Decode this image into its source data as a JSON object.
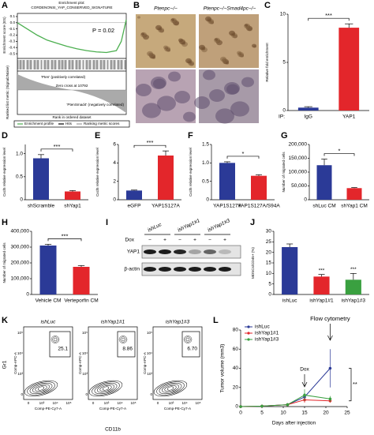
{
  "panels": {
    "B": {
      "label": "B",
      "columns": [
        "Ptenpc−/−",
        "Ptenpc−/−Smad4pc−/−"
      ]
    },
    "I": {
      "label": "I",
      "groups": [
        "ishLuc",
        "ishYap1#1",
        "ishYap1#3"
      ],
      "dox_label": "Dox",
      "dox": [
        "−",
        "+",
        "−",
        "+",
        "−",
        "+"
      ],
      "rows": [
        "YAP1",
        "β-actin"
      ]
    },
    "K": {
      "label": "K",
      "plots": [
        {
          "title": "ishLuc",
          "gate": "25.1"
        },
        {
          "title": "ishYap1#1",
          "gate": "8.86"
        },
        {
          "title": "ishYap1#3",
          "gate": "6.70"
        }
      ],
      "y_label": "Gr1",
      "x_label": "CD11b",
      "plot_y_axis": "Comp-APC-A",
      "plot_x_axis": "Comp-PE-Cy7-A",
      "axis_ticks": [
        "0",
        "10³",
        "10⁴",
        "10⁵"
      ]
    }
  },
  "chart_data": [
    {
      "type": "gsea",
      "panel_label": "A",
      "title": "Enrichment plot:",
      "subtitle": "CORDENONSI_YAP_CONSERVED_SIGNATURE",
      "y_label": "Enrichment score (ES)",
      "annotation": "P = 0.02",
      "x": [
        0,
        2000,
        4000,
        6000,
        8000,
        10000,
        12000,
        14000,
        16000,
        18000,
        20000,
        21000,
        22000
      ],
      "series": [
        {
          "name": "Enrichment profile",
          "color": "#4caf50",
          "values": [
            0,
            -0.1,
            -0.2,
            -0.28,
            -0.33,
            -0.38,
            -0.42,
            -0.45,
            -0.47,
            -0.48,
            -0.45,
            -0.3,
            0.05
          ]
        }
      ],
      "legend_extra": [
        {
          "name": "Hits",
          "color": "#000000"
        },
        {
          "name": "Ranking metric scores",
          "color": "#999999"
        }
      ],
      "xlim": [
        0,
        22000
      ],
      "ylim": [
        -0.55,
        0.15
      ],
      "yticks": [
        0.1,
        {
          "value": 0,
          "label": "0.0"
        },
        -0.1,
        -0.2,
        -0.3,
        -0.4,
        -0.5
      ],
      "positive_label": "'Pten' (positively correlated)",
      "zero_cross": "Zero cross at 10792",
      "negative_label": "'PtenSmad4' (negatively correlated)",
      "metric_label": "Ranked list metric (Signal2Noise)",
      "x_label": "Rank in ordered dataset"
    },
    {
      "type": "bar",
      "panel_label": "C",
      "y_label": "Relative fold enrichment",
      "categories": [
        "IgG",
        "YAP1"
      ],
      "category_prefix": "IP:",
      "values": [
        0.3,
        8.6
      ],
      "errors": [
        0.1,
        0.4
      ],
      "colors": [
        "#2b3a97",
        "#e3262b"
      ],
      "ylim": [
        0,
        10
      ],
      "yticks": [
        0,
        5,
        10
      ],
      "annotations": [
        "***"
      ]
    },
    {
      "type": "bar",
      "panel_label": "D",
      "y_label": "Cxcl5 relative expression level",
      "categories": [
        "shScramble",
        "shYap1"
      ],
      "values": [
        0.9,
        0.18
      ],
      "errors": [
        0.08,
        0.02
      ],
      "colors": [
        "#2b3a97",
        "#e3262b"
      ],
      "ylim": [
        0,
        1.2
      ],
      "yticks": [
        0,
        0.5,
        {
          "value": 1,
          "label": "1.0"
        }
      ],
      "annotations": [
        "***"
      ]
    },
    {
      "type": "bar",
      "panel_label": "E",
      "y_label": "Cxcl5 relative expression level",
      "categories": [
        "eGFP",
        "YAP1S127A"
      ],
      "values": [
        1.0,
        4.8
      ],
      "errors": [
        0.05,
        0.5
      ],
      "colors": [
        "#2b3a97",
        "#e3262b"
      ],
      "ylim": [
        0,
        6
      ],
      "yticks": [
        0,
        2,
        4,
        6
      ],
      "annotations": [
        "***"
      ]
    },
    {
      "type": "bar",
      "panel_label": "F",
      "y_label": "Cxcl5 relative expression level",
      "categories": [
        "YAP1S127A",
        "YAP1S127A/S94A"
      ],
      "values": [
        1.0,
        0.65
      ],
      "errors": [
        0.03,
        0.03
      ],
      "colors": [
        "#2b3a97",
        "#e3262b"
      ],
      "ylim": [
        0,
        1.5
      ],
      "yticks": [
        0,
        0.5,
        {
          "value": 1,
          "label": "1.0"
        },
        1.5
      ],
      "annotations": [
        "*"
      ]
    },
    {
      "type": "bar",
      "panel_label": "G",
      "y_label": "Number of migrated cells",
      "categories": [
        "shLuc CM",
        "shYap1 CM"
      ],
      "values": [
        125000,
        42000
      ],
      "errors": [
        22000,
        2000
      ],
      "colors": [
        "#2b3a97",
        "#e3262b"
      ],
      "ylim": [
        0,
        200000
      ],
      "yticks": [
        0,
        {
          "value": 50000,
          "label": "50,000"
        },
        {
          "value": 100000,
          "label": "100,000"
        },
        {
          "value": 150000,
          "label": "150,000"
        },
        {
          "value": 200000,
          "label": "200,000"
        }
      ],
      "annotations": [
        "*"
      ]
    },
    {
      "type": "bar",
      "panel_label": "H",
      "y_label": "Number of migrated cells",
      "categories": [
        "Vehicle CM",
        "Verteporfin CM"
      ],
      "values": [
        310000,
        175000
      ],
      "errors": [
        8000,
        8000
      ],
      "colors": [
        "#2b3a97",
        "#e3262b"
      ],
      "ylim": [
        0,
        400000
      ],
      "yticks": [
        0,
        {
          "value": 100000,
          "label": "100,000"
        },
        {
          "value": 200000,
          "label": "200,000"
        },
        {
          "value": 300000,
          "label": "300,000"
        },
        {
          "value": 400000,
          "label": "400,000"
        }
      ],
      "annotations": [
        "***"
      ]
    },
    {
      "type": "bar",
      "panel_label": "J",
      "y_label": "MDSCs/CD45+ (%)",
      "categories": [
        "ishLuc",
        "ishYap1#1",
        "ishYap1#3"
      ],
      "values": [
        22.5,
        8.5,
        7
      ],
      "errors": [
        1.5,
        1,
        3
      ],
      "colors": [
        "#2b3a97",
        "#e3262b",
        "#3aa040"
      ],
      "ylim": [
        0,
        30
      ],
      "yticks": [
        0,
        5,
        10,
        15,
        20,
        25,
        30
      ],
      "annotations": [
        "***",
        "***"
      ]
    },
    {
      "type": "line",
      "panel_label": "L",
      "y_label": "Tumor volume (mm3)",
      "x_label": "Days after injection",
      "x": [
        0,
        5,
        11,
        15,
        21
      ],
      "xlim": [
        0,
        25
      ],
      "xticks": [
        0,
        5,
        10,
        15,
        20,
        25
      ],
      "ylim": [
        0,
        80
      ],
      "yticks": [
        0,
        20,
        40,
        60,
        80
      ],
      "series": [
        {
          "name": "ishLuc",
          "color": "#2b3a97",
          "values": [
            0,
            0.5,
            2,
            10,
            40
          ],
          "errors": [
            0,
            0.3,
            1,
            4,
            20
          ]
        },
        {
          "name": "ishYap1#1",
          "color": "#e3262b",
          "values": [
            0,
            0.5,
            2,
            7,
            6
          ],
          "errors": [
            0,
            0.3,
            1,
            3,
            2
          ]
        },
        {
          "name": "ishYap1#3",
          "color": "#3aa040",
          "values": [
            0,
            0.5,
            2,
            12,
            8
          ],
          "errors": [
            0,
            0.3,
            1,
            6,
            3
          ]
        }
      ],
      "flow_label": "Flow cytometry",
      "dox_label": "Dox",
      "significance": "**"
    }
  ]
}
